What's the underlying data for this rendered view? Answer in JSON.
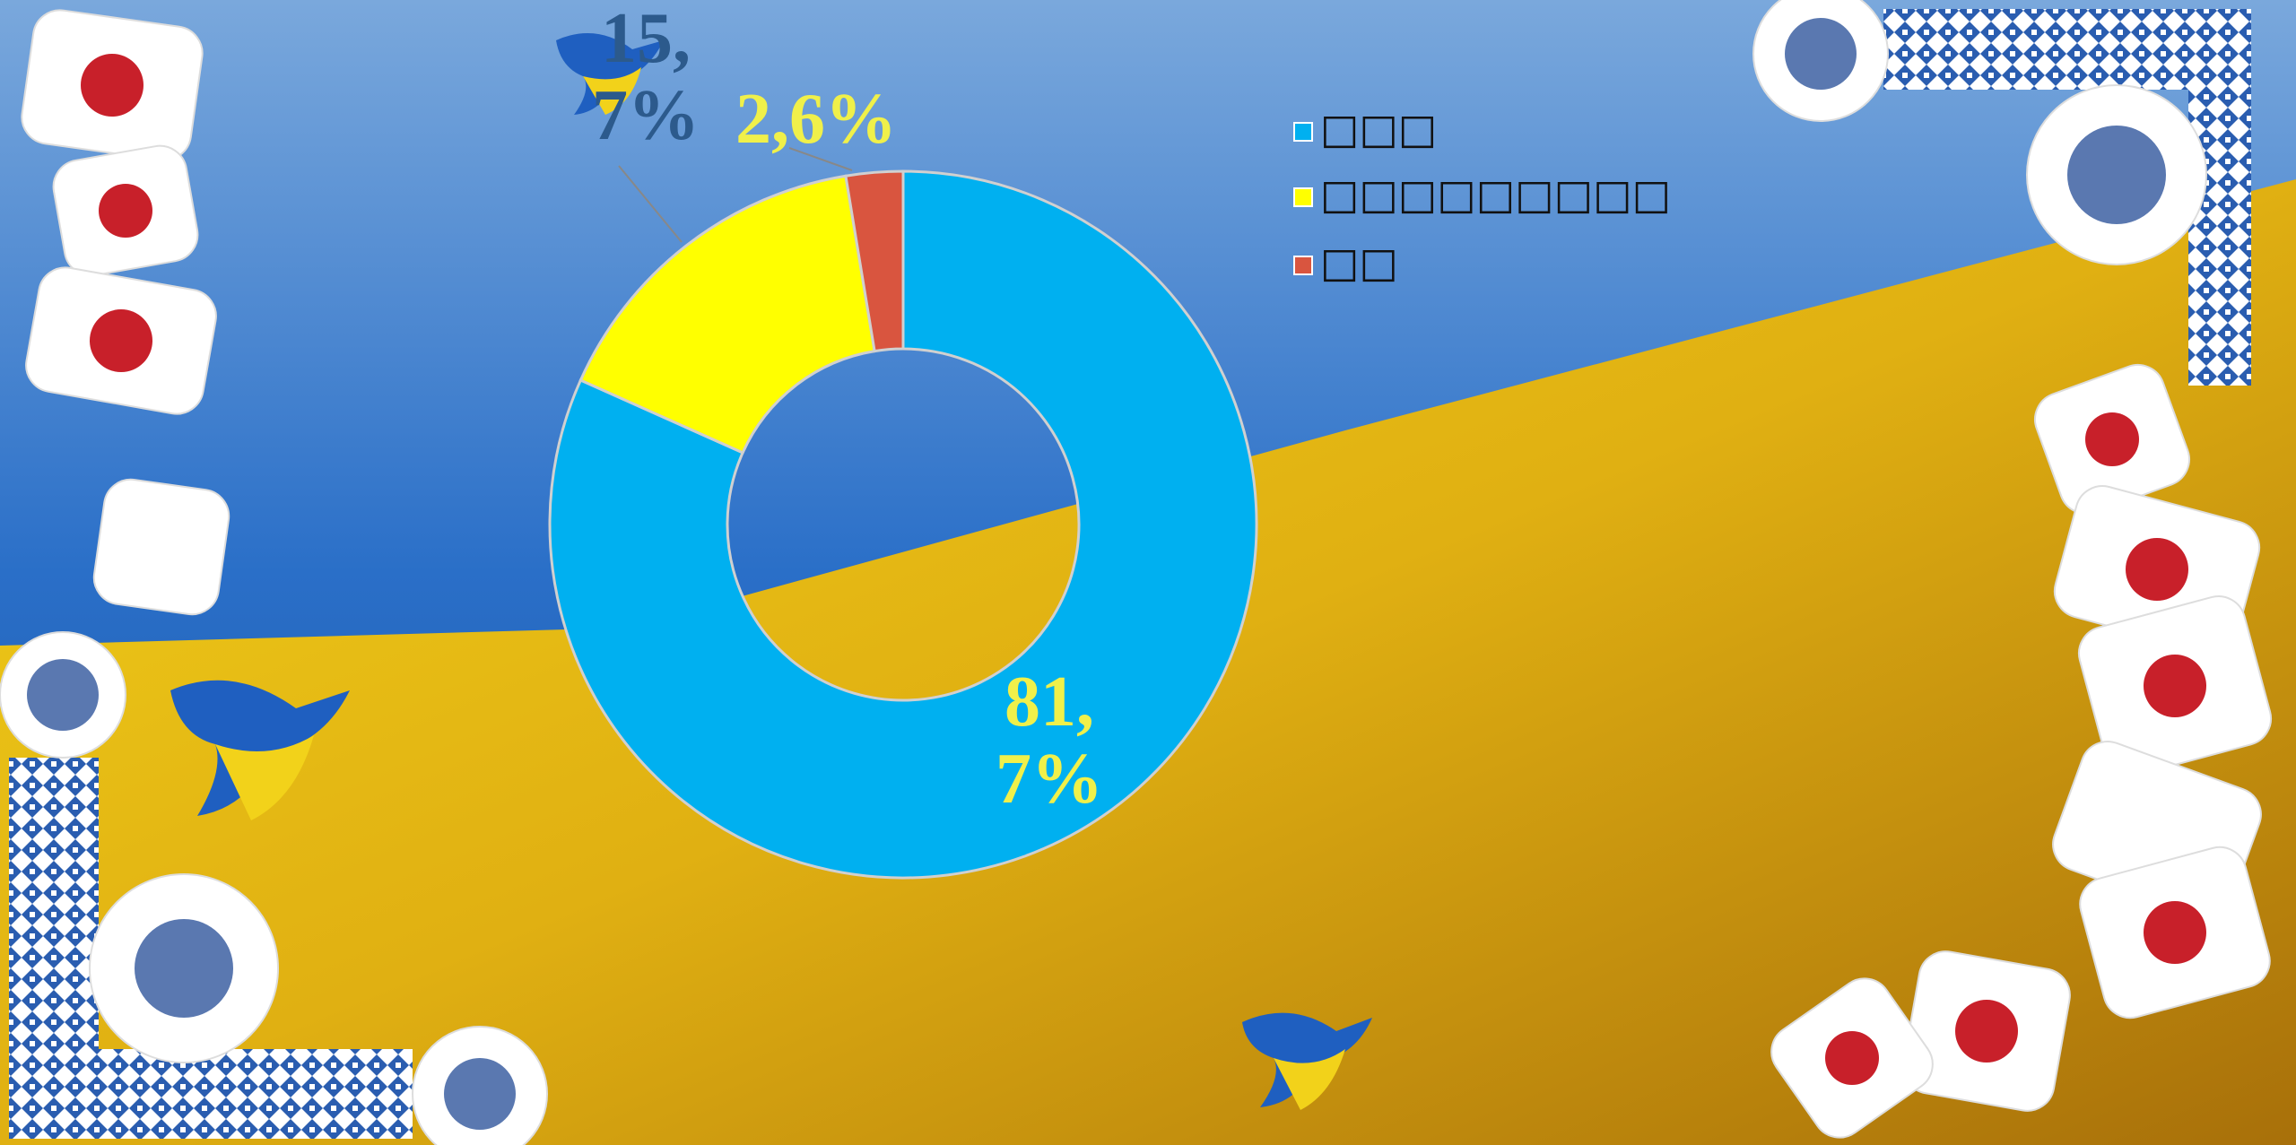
{
  "chart_data": {
    "type": "donut",
    "categories": [
      "□□□",
      "□□□□□□□□□",
      "□□"
    ],
    "values": [
      81.7,
      15.7,
      2.6
    ],
    "value_labels": [
      "81,7%",
      "15,7%",
      "2,6%"
    ],
    "colors": [
      "#00b0f0",
      "#ffff00",
      "#d9553f"
    ],
    "legend": "top-right"
  }
}
